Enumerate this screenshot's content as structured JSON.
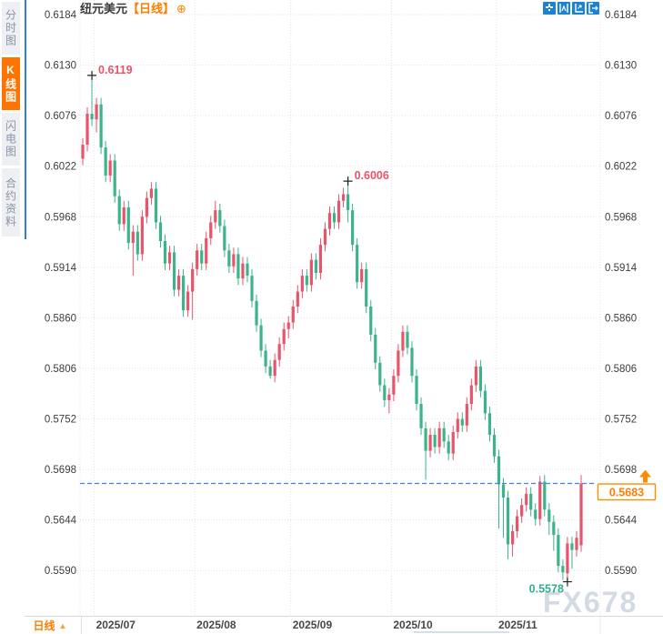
{
  "header": {
    "symbol": "纽元美元",
    "period_tag": "【日线】",
    "add_icon": "⊕",
    "toolbar_icons": [
      "move-cross-icon",
      "fit-range-icon",
      "axes-scale-icon",
      "exit-pane-icon"
    ]
  },
  "sidebar": {
    "items": [
      {
        "label": "分时图",
        "active": false
      },
      {
        "label": "K线图",
        "active": true
      },
      {
        "label": "闪电图",
        "active": false
      },
      {
        "label": "合约资料",
        "active": false
      }
    ]
  },
  "bottom": {
    "period_label": "日线",
    "arrow": "▲"
  },
  "watermark": "FX678",
  "chart_data": {
    "type": "candlestick",
    "title": "纽元美元 日线 (NZD/USD Daily)",
    "ylabel": "",
    "xlabel": "",
    "grid": true,
    "ylim": [
      0.556,
      0.62
    ],
    "y_ticks": [
      0.6184,
      0.613,
      0.6076,
      0.6022,
      0.5968,
      0.5914,
      0.586,
      0.5806,
      0.5752,
      0.5698,
      0.5644,
      0.559
    ],
    "x_labels": [
      "2025/07",
      "2025/08",
      "2025/09",
      "2025/10",
      "2025/11"
    ],
    "month_start_indices": [
      3,
      25,
      46,
      68,
      91
    ],
    "current_price": 0.5683,
    "colors": {
      "up": "#e8546b",
      "down": "#3db389",
      "dashed_line": "#3f86e8",
      "price_box": "#ff8b00",
      "high_label": "#e8546b",
      "low_label": "#2fae8f"
    },
    "annotations": [
      {
        "text": "0.6119",
        "price": 0.6119,
        "candle_index": 2,
        "kind": "high"
      },
      {
        "text": "0.6006",
        "price": 0.6006,
        "candle_index": 58,
        "kind": "high"
      },
      {
        "text": "0.5578",
        "price": 0.5578,
        "candle_index": 106,
        "kind": "low"
      }
    ],
    "candles": [
      [
        0.603,
        0.6052,
        0.6023,
        0.6045
      ],
      [
        0.6045,
        0.6085,
        0.6038,
        0.6078
      ],
      [
        0.6078,
        0.6119,
        0.6065,
        0.6072
      ],
      [
        0.6072,
        0.6095,
        0.6058,
        0.6088
      ],
      [
        0.6088,
        0.6095,
        0.6035,
        0.6042
      ],
      [
        0.6042,
        0.6049,
        0.6005,
        0.6012
      ],
      [
        0.6012,
        0.6035,
        0.6005,
        0.6028
      ],
      [
        0.6028,
        0.6035,
        0.5983,
        0.599
      ],
      [
        0.599,
        0.5997,
        0.5953,
        0.596
      ],
      [
        0.596,
        0.5985,
        0.5953,
        0.5978
      ],
      [
        0.5978,
        0.5985,
        0.5933,
        0.594
      ],
      [
        0.594,
        0.5959,
        0.5905,
        0.5952
      ],
      [
        0.5952,
        0.5959,
        0.5921,
        0.5928
      ],
      [
        0.5928,
        0.5975,
        0.5921,
        0.5968
      ],
      [
        0.5968,
        0.5995,
        0.5961,
        0.5988
      ],
      [
        0.5988,
        0.6005,
        0.5981,
        0.5998
      ],
      [
        0.5998,
        0.6005,
        0.5955,
        0.5962
      ],
      [
        0.5962,
        0.5969,
        0.5935,
        0.5942
      ],
      [
        0.5942,
        0.5949,
        0.5911,
        0.5918
      ],
      [
        0.5918,
        0.5937,
        0.5911,
        0.593
      ],
      [
        0.593,
        0.5937,
        0.5883,
        0.589
      ],
      [
        0.589,
        0.5912,
        0.5883,
        0.5905
      ],
      [
        0.5905,
        0.5912,
        0.5861,
        0.5868
      ],
      [
        0.5868,
        0.5895,
        0.5861,
        0.5888
      ],
      [
        0.5888,
        0.5919,
        0.5858,
        0.5912
      ],
      [
        0.5912,
        0.5939,
        0.5905,
        0.5932
      ],
      [
        0.5932,
        0.5939,
        0.5911,
        0.5918
      ],
      [
        0.5918,
        0.5952,
        0.5911,
        0.5945
      ],
      [
        0.5945,
        0.5969,
        0.5938,
        0.5962
      ],
      [
        0.5962,
        0.5985,
        0.5955,
        0.5975
      ],
      [
        0.5975,
        0.5982,
        0.5951,
        0.5958
      ],
      [
        0.5958,
        0.5965,
        0.5925,
        0.5932
      ],
      [
        0.5932,
        0.5939,
        0.5908,
        0.5915
      ],
      [
        0.5915,
        0.5935,
        0.5908,
        0.5928
      ],
      [
        0.5928,
        0.5935,
        0.5895,
        0.5902
      ],
      [
        0.5902,
        0.5925,
        0.5895,
        0.5918
      ],
      [
        0.5918,
        0.5925,
        0.5898,
        0.5905
      ],
      [
        0.5905,
        0.5912,
        0.5871,
        0.5878
      ],
      [
        0.5878,
        0.5885,
        0.5845,
        0.5852
      ],
      [
        0.5852,
        0.5859,
        0.5818,
        0.5825
      ],
      [
        0.5825,
        0.5832,
        0.5801,
        0.5808
      ],
      [
        0.5808,
        0.5815,
        0.5795,
        0.5798
      ],
      [
        0.5798,
        0.5822,
        0.5791,
        0.5815
      ],
      [
        0.5815,
        0.5839,
        0.5808,
        0.5832
      ],
      [
        0.5832,
        0.5855,
        0.5825,
        0.5848
      ],
      [
        0.5848,
        0.5862,
        0.5838,
        0.5855
      ],
      [
        0.5855,
        0.5879,
        0.5848,
        0.5872
      ],
      [
        0.5872,
        0.5895,
        0.5865,
        0.5888
      ],
      [
        0.5888,
        0.5912,
        0.5881,
        0.5905
      ],
      [
        0.5905,
        0.5912,
        0.5888,
        0.5895
      ],
      [
        0.5895,
        0.5929,
        0.5888,
        0.5922
      ],
      [
        0.5922,
        0.5929,
        0.5901,
        0.5908
      ],
      [
        0.5908,
        0.5945,
        0.5901,
        0.5938
      ],
      [
        0.5938,
        0.5962,
        0.5931,
        0.5955
      ],
      [
        0.5955,
        0.5979,
        0.5948,
        0.5972
      ],
      [
        0.5972,
        0.5979,
        0.5955,
        0.5962
      ],
      [
        0.5962,
        0.5992,
        0.5955,
        0.5985
      ],
      [
        0.5985,
        0.5999,
        0.5978,
        0.5992
      ],
      [
        0.5992,
        0.6006,
        0.5962,
        0.5975
      ],
      [
        0.5975,
        0.5982,
        0.5931,
        0.5938
      ],
      [
        0.5938,
        0.5945,
        0.5891,
        0.5898
      ],
      [
        0.5898,
        0.5919,
        0.5891,
        0.5912
      ],
      [
        0.5912,
        0.5919,
        0.5865,
        0.5872
      ],
      [
        0.5872,
        0.5879,
        0.5835,
        0.5842
      ],
      [
        0.5842,
        0.5849,
        0.5805,
        0.5812
      ],
      [
        0.5812,
        0.5819,
        0.5781,
        0.5788
      ],
      [
        0.5788,
        0.5795,
        0.5765,
        0.5772
      ],
      [
        0.5772,
        0.5785,
        0.5758,
        0.5778
      ],
      [
        0.5778,
        0.5805,
        0.5771,
        0.5798
      ],
      [
        0.5798,
        0.5832,
        0.5791,
        0.5825
      ],
      [
        0.5825,
        0.5852,
        0.5818,
        0.5845
      ],
      [
        0.5845,
        0.5852,
        0.5821,
        0.5828
      ],
      [
        0.5828,
        0.5835,
        0.5791,
        0.5798
      ],
      [
        0.5798,
        0.5805,
        0.5761,
        0.5768
      ],
      [
        0.5768,
        0.5775,
        0.5735,
        0.5742
      ],
      [
        0.5742,
        0.5749,
        0.5687,
        0.5718
      ],
      [
        0.5718,
        0.5742,
        0.5711,
        0.5735
      ],
      [
        0.5735,
        0.5742,
        0.5715,
        0.5722
      ],
      [
        0.5722,
        0.5749,
        0.5715,
        0.5742
      ],
      [
        0.5742,
        0.5749,
        0.5721,
        0.5728
      ],
      [
        0.5728,
        0.5735,
        0.5708,
        0.5715
      ],
      [
        0.5715,
        0.5745,
        0.5708,
        0.5738
      ],
      [
        0.5738,
        0.5759,
        0.5731,
        0.5752
      ],
      [
        0.5752,
        0.5759,
        0.5738,
        0.5745
      ],
      [
        0.5745,
        0.5775,
        0.5738,
        0.5768
      ],
      [
        0.5768,
        0.5795,
        0.5761,
        0.5788
      ],
      [
        0.5788,
        0.5815,
        0.5781,
        0.5808
      ],
      [
        0.5808,
        0.5815,
        0.5775,
        0.5782
      ],
      [
        0.5782,
        0.5789,
        0.5751,
        0.5758
      ],
      [
        0.5758,
        0.5765,
        0.5728,
        0.5735
      ],
      [
        0.5735,
        0.5742,
        0.5705,
        0.5712
      ],
      [
        0.5712,
        0.5719,
        0.5635,
        0.5682
      ],
      [
        0.5682,
        0.5689,
        0.5625,
        0.5668
      ],
      [
        0.5668,
        0.5675,
        0.5602,
        0.5618
      ],
      [
        0.5618,
        0.5639,
        0.5605,
        0.5632
      ],
      [
        0.5632,
        0.5655,
        0.5625,
        0.5648
      ],
      [
        0.5648,
        0.5667,
        0.5641,
        0.566
      ],
      [
        0.566,
        0.5679,
        0.5653,
        0.5672
      ],
      [
        0.5672,
        0.5679,
        0.5648,
        0.5655
      ],
      [
        0.5655,
        0.5662,
        0.5638,
        0.5645
      ],
      [
        0.5645,
        0.5691,
        0.5638,
        0.5685
      ],
      [
        0.5685,
        0.5692,
        0.5648,
        0.5655
      ],
      [
        0.5655,
        0.5662,
        0.5628,
        0.5642
      ],
      [
        0.5642,
        0.5649,
        0.5611,
        0.5628
      ],
      [
        0.5628,
        0.5635,
        0.5588,
        0.5595
      ],
      [
        0.5595,
        0.5602,
        0.558,
        0.5588
      ],
      [
        0.5587,
        0.5626,
        0.5578,
        0.5619
      ],
      [
        0.5619,
        0.5626,
        0.5592,
        0.5612
      ],
      [
        0.5612,
        0.5632,
        0.5605,
        0.5625
      ],
      [
        0.5617,
        0.5692,
        0.561,
        0.5683
      ]
    ]
  }
}
